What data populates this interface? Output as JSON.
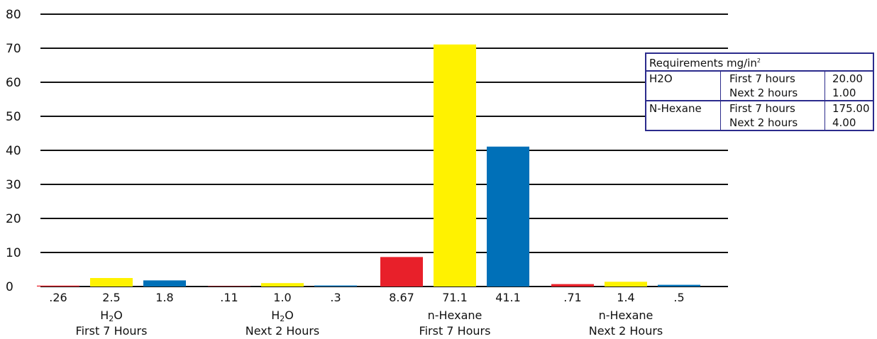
{
  "chart_data": {
    "type": "bar",
    "ylim": [
      0,
      80
    ],
    "yticks": [
      0,
      10,
      20,
      30,
      40,
      50,
      60,
      70,
      80
    ],
    "grid": true,
    "series_colors": [
      "#e8202a",
      "#fff200",
      "#0070b8"
    ],
    "groups": [
      {
        "label_line1": "H",
        "label_sub": "2",
        "label_line1_end": "O",
        "label_line2": "First 7 Hours",
        "values": [
          0.26,
          2.5,
          1.8
        ],
        "value_labels": [
          ".26",
          "2.5",
          "1.8"
        ]
      },
      {
        "label_line1": "H",
        "label_sub": "2",
        "label_line1_end": "O",
        "label_line2": "Next 2 Hours",
        "values": [
          0.11,
          1.0,
          0.3
        ],
        "value_labels": [
          ".11",
          "1.0",
          ".3"
        ]
      },
      {
        "label_line1": "n-Hexane",
        "label_sub": "",
        "label_line1_end": "",
        "label_line2": "First 7 Hours",
        "values": [
          8.67,
          71.1,
          41.1
        ],
        "value_labels": [
          "8.67",
          "71.1",
          "41.1"
        ]
      },
      {
        "label_line1": "n-Hexane",
        "label_sub": "",
        "label_line1_end": "",
        "label_line2": "Next 2 Hours",
        "values": [
          0.71,
          1.4,
          0.5
        ],
        "value_labels": [
          ".71",
          "1.4",
          ".5"
        ]
      }
    ]
  },
  "requirements": {
    "title": "Requirements mg/in",
    "title_sup": "2",
    "rows": [
      {
        "substance": "H2O",
        "period": "First 7 hours",
        "value": "20.00"
      },
      {
        "substance": "",
        "period": "Next 2 hours",
        "value": "1.00"
      },
      {
        "substance": "N-Hexane",
        "period": "First 7 hours",
        "value": "175.00"
      },
      {
        "substance": "",
        "period": "Next 2 hours",
        "value": "4.00"
      }
    ]
  }
}
